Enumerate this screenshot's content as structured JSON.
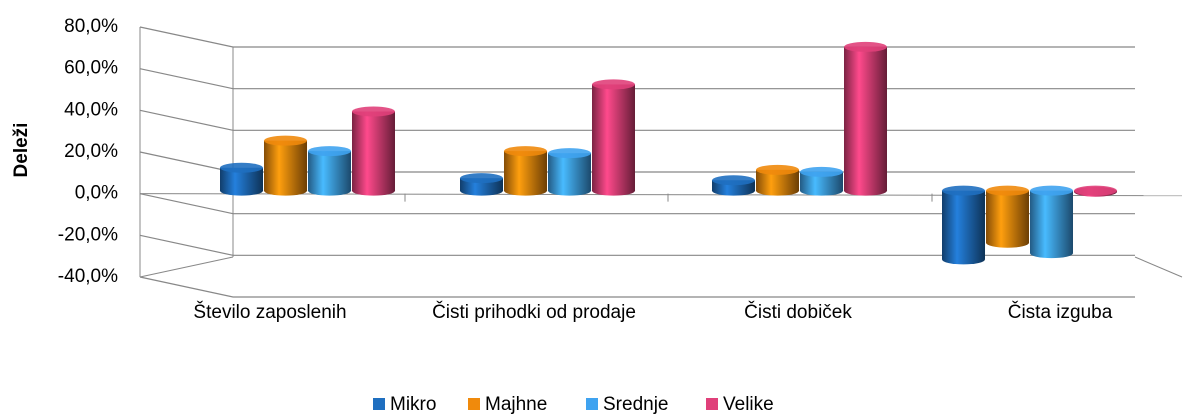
{
  "chart_data": {
    "type": "bar",
    "y_label": "Deleži",
    "categories": [
      "Število zaposlenih",
      "Čisti prihodki od prodaje",
      "Čisti dobiček",
      "Čista izguba"
    ],
    "series": [
      {
        "name": "Mikro",
        "color": "#1f6fc0",
        "values": [
          11,
          6,
          5,
          -33
        ]
      },
      {
        "name": "Majhne",
        "color": "#f08a0c",
        "values": [
          24,
          19,
          10,
          -25
        ]
      },
      {
        "name": "Srednje",
        "color": "#3fa3f0",
        "values": [
          19,
          18,
          9,
          -30
        ]
      },
      {
        "name": "Velike",
        "color": "#e0407a",
        "values": [
          38,
          51,
          69,
          -0.5
        ]
      }
    ],
    "ylim": [
      -40,
      80
    ],
    "yticks": [
      {
        "value": -40,
        "label": "-40,0%"
      },
      {
        "value": -20,
        "label": "-20,0%"
      },
      {
        "value": 0,
        "label": "0,0%"
      },
      {
        "value": 20,
        "label": "20,0%"
      },
      {
        "value": 40,
        "label": "40,0%"
      },
      {
        "value": 60,
        "label": "60,0%"
      },
      {
        "value": 80,
        "label": "80,0%"
      }
    ],
    "grid": true,
    "legend": "bottom"
  }
}
